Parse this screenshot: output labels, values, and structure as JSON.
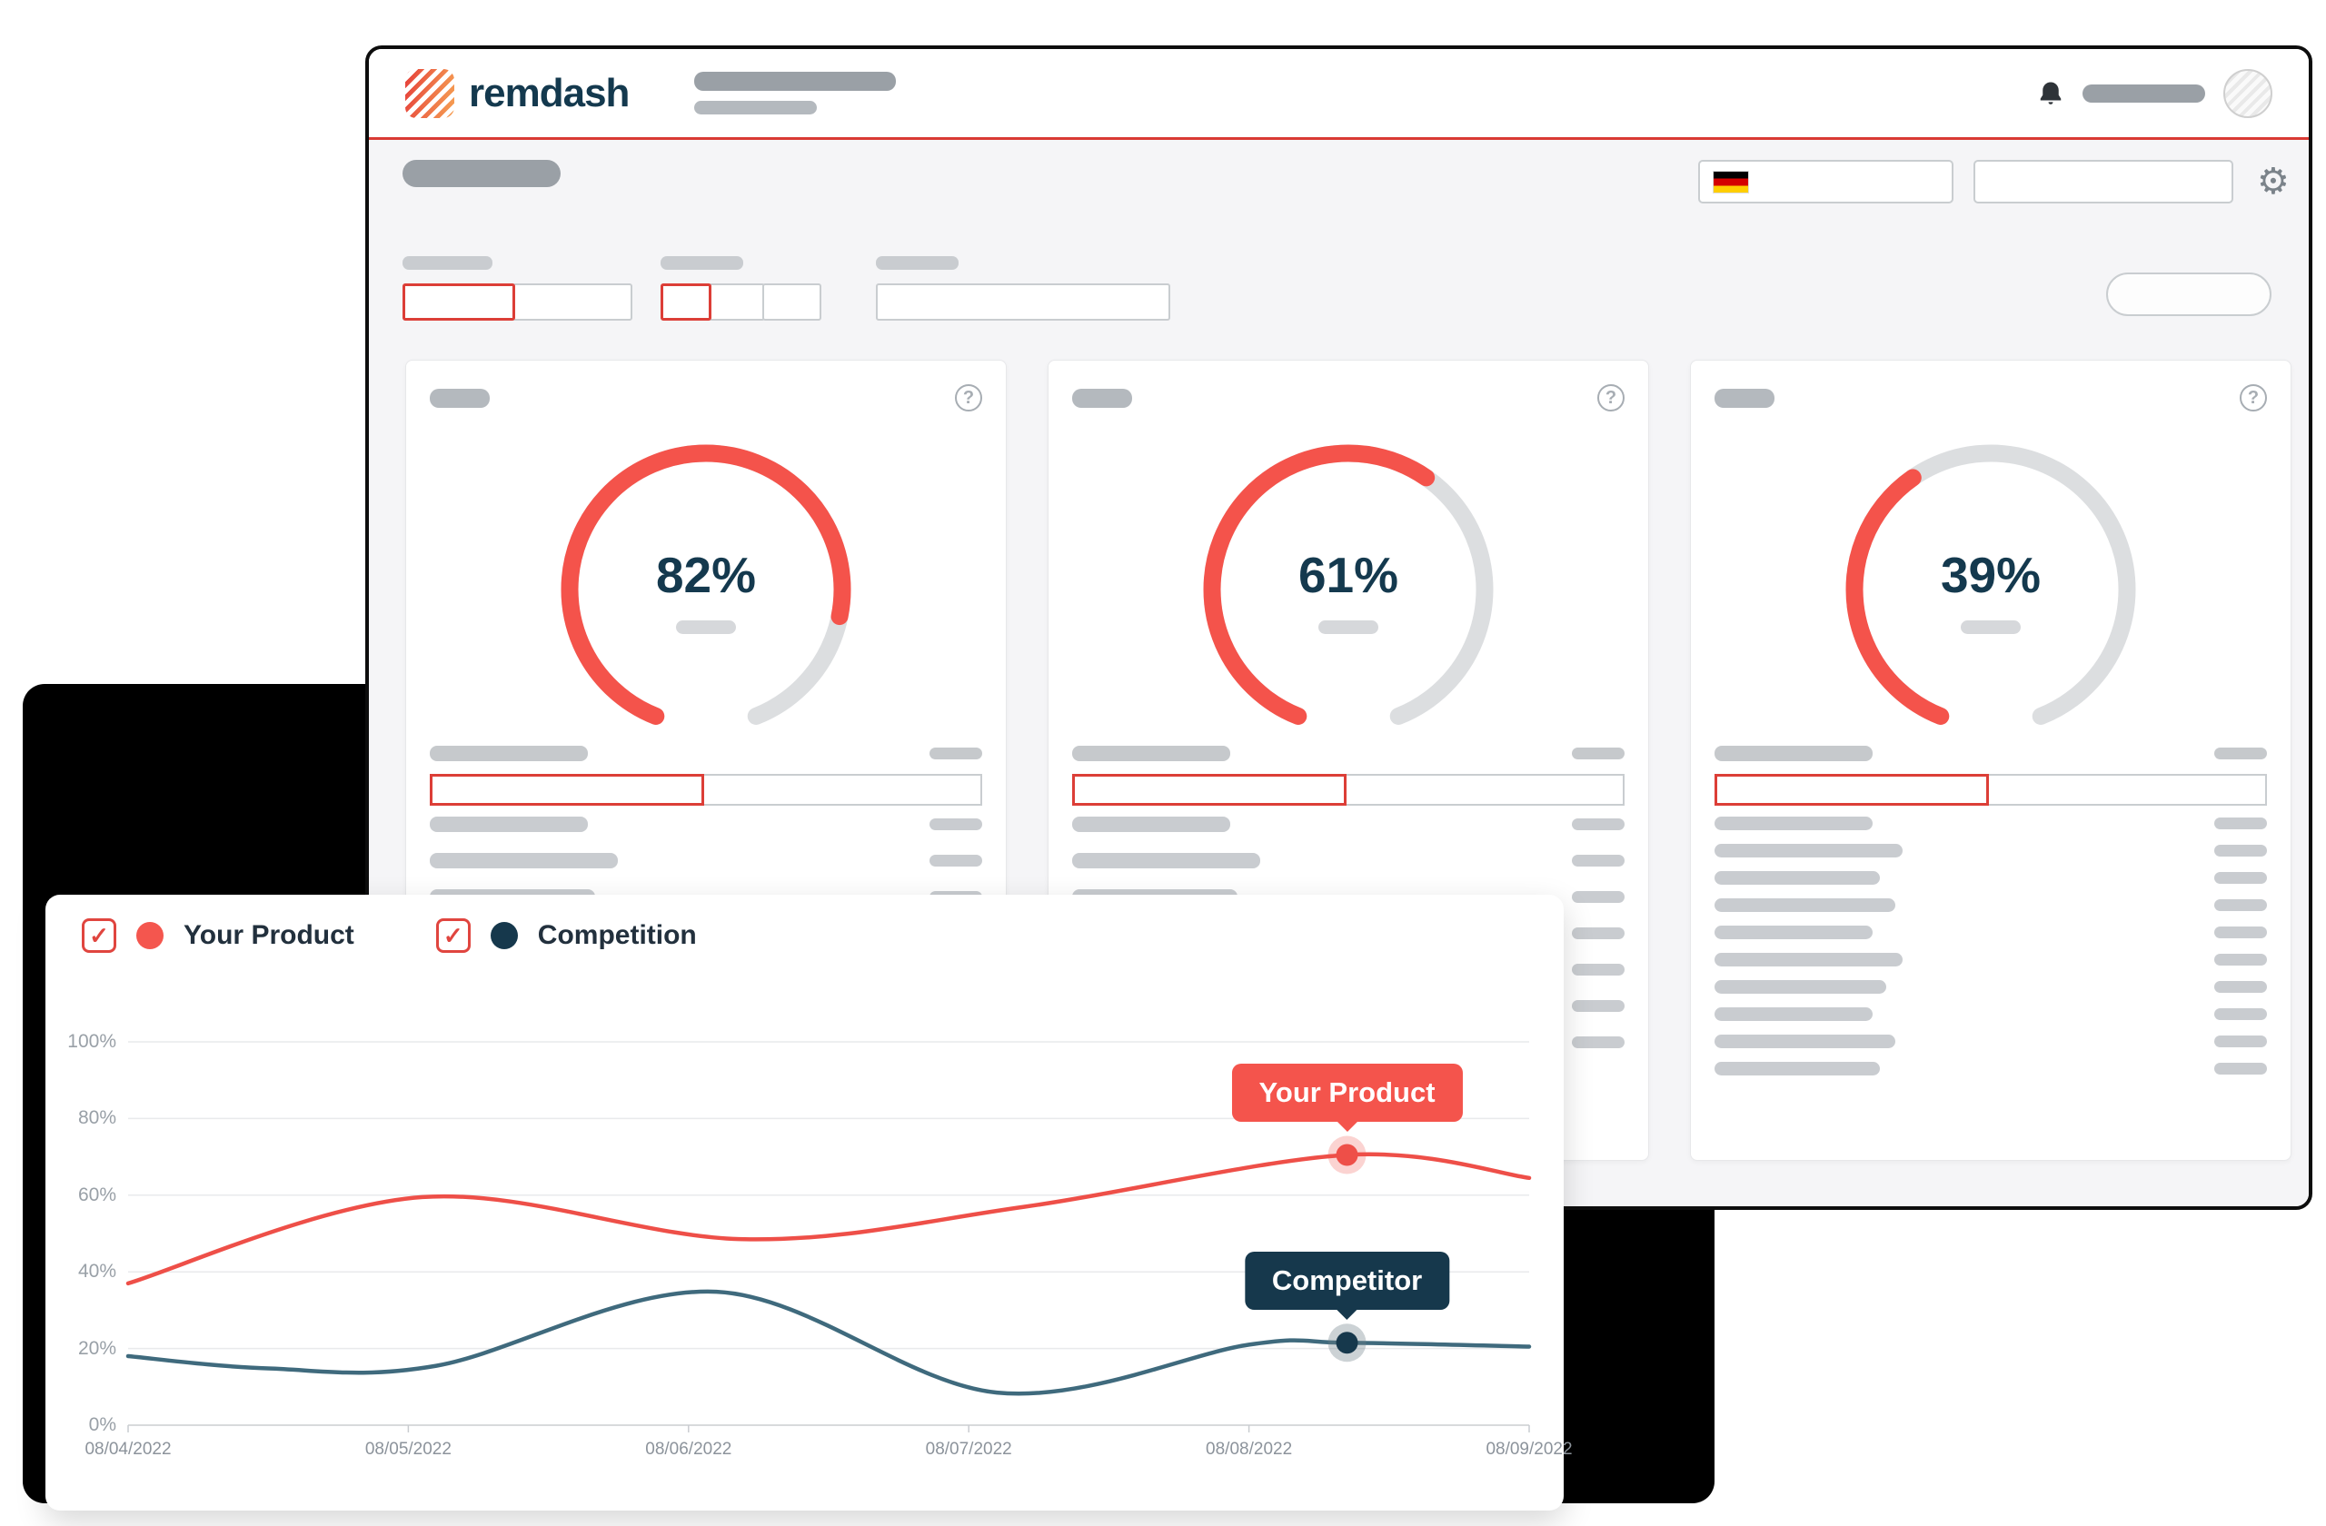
{
  "brand": {
    "name": "remdash"
  },
  "icons": {
    "help": "?",
    "gear": "⚙",
    "check": "✓",
    "bell": "bell"
  },
  "colors": {
    "accent_red": "#dc3e37",
    "navy": "#14394e"
  },
  "header": {
    "language": "de"
  },
  "cards": [
    {
      "label": "82%",
      "value": 82,
      "progress": 50,
      "list_rows": 3
    },
    {
      "label": "61%",
      "value": 61,
      "progress": 50,
      "list_rows": 7
    },
    {
      "label": "39%",
      "value": 39,
      "progress": 50,
      "list_rows": 10
    }
  ],
  "legend": [
    {
      "label": "Your Product",
      "checked": true,
      "color": "#f4564e"
    },
    {
      "label": "Competition",
      "checked": true,
      "color": "#16384c"
    }
  ],
  "chart_data": {
    "type": "line",
    "x_labels": [
      "08/04/2022",
      "08/05/2022",
      "08/06/2022",
      "08/07/2022",
      "08/08/2022",
      "08/09/2022"
    ],
    "y_tick_labels": [
      "0%",
      "20%",
      "40%",
      "60%",
      "80%",
      "100%"
    ],
    "ylim": [
      0,
      100
    ],
    "x_range_days": [
      0,
      5
    ],
    "grid": true,
    "legend_position": "top-left",
    "series": [
      {
        "name": "Your Product",
        "color": "#ee4f48",
        "halo": "rgba(238,79,72,0.25)",
        "dot": "#ee4f48",
        "tooltip": "Your Product",
        "tooltip_bg": "#f4544c",
        "marker_index": 4,
        "points": [
          [
            0,
            37
          ],
          [
            1.05,
            59.5
          ],
          [
            2.2,
            48.5
          ],
          [
            3.2,
            57
          ],
          [
            4.35,
            70.5
          ],
          [
            5,
            64.5
          ]
        ]
      },
      {
        "name": "Competition",
        "color": "#3f6a7d",
        "halo": "rgba(110,125,135,0.35)",
        "dot": "#16384c",
        "tooltip": "Competitor",
        "tooltip_bg": "#16384c",
        "marker_index": 6,
        "points": [
          [
            0,
            18
          ],
          [
            0.5,
            14.8
          ],
          [
            1.1,
            15.5
          ],
          [
            2.1,
            34.8
          ],
          [
            3.1,
            8.5
          ],
          [
            4,
            21
          ],
          [
            4.35,
            21.5
          ],
          [
            5,
            20.5
          ]
        ]
      }
    ]
  }
}
